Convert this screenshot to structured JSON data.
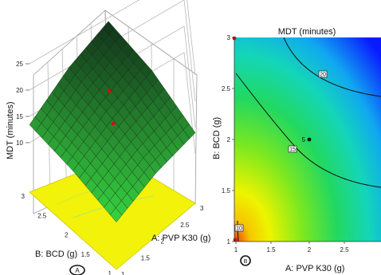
{
  "chart_data": [
    {
      "type": "surface3d",
      "panel_marker": "A",
      "zlabel": "MDT (minutes)",
      "xlabel": "A: PVP K30 (g)",
      "ylabel": "B: BCD (g)",
      "z_ticks": [
        "10",
        "15",
        "20",
        "25"
      ],
      "x_ticks": [
        "1",
        "1.5",
        "2",
        "2.5",
        "3"
      ],
      "y_ticks": [
        "1",
        "1.5",
        "2",
        "2.5",
        "3"
      ],
      "zlim": [
        10,
        25
      ],
      "xlim": [
        1,
        3
      ],
      "ylim": [
        1,
        3
      ],
      "surface_grid": {
        "a": [
          1,
          2,
          3
        ],
        "b": [
          1,
          2,
          3
        ],
        "mdt": [
          [
            9.6,
            12.0,
            13.4
          ],
          [
            12.6,
            15.6,
            18.0
          ],
          [
            14.0,
            18.5,
            20.5
          ]
        ]
      },
      "design_points_mdt": [
        9.6,
        20.5,
        15.2
      ],
      "colors": {
        "floor": "#f2f20a",
        "surface_low": "#30d040",
        "surface_high": "#154020",
        "mesh": "#0d1a0d"
      }
    },
    {
      "type": "contour",
      "panel_marker": "B",
      "title": "MDT (minutes)",
      "xlabel": "A: PVP K30 (g)",
      "ylabel": "B: BCD (g)",
      "x_ticks": [
        "1",
        "1.5",
        "2",
        "2.5"
      ],
      "y_ticks": [
        "1",
        "1.5",
        "2",
        "2.5",
        "3"
      ],
      "xlim": [
        1,
        3
      ],
      "ylim": [
        1,
        3
      ],
      "contour_labels": [
        "10",
        "15",
        "20"
      ],
      "center_point": {
        "a": 2,
        "b": 2,
        "label": "5"
      },
      "corner_points": [
        {
          "a": 1,
          "b": 1
        },
        {
          "a": 1,
          "b": 3
        }
      ],
      "colors": {
        "low": "#e83a10",
        "mid": "#f6f000",
        "mid2": "#40d860",
        "high": "#0a1aff"
      }
    }
  ]
}
